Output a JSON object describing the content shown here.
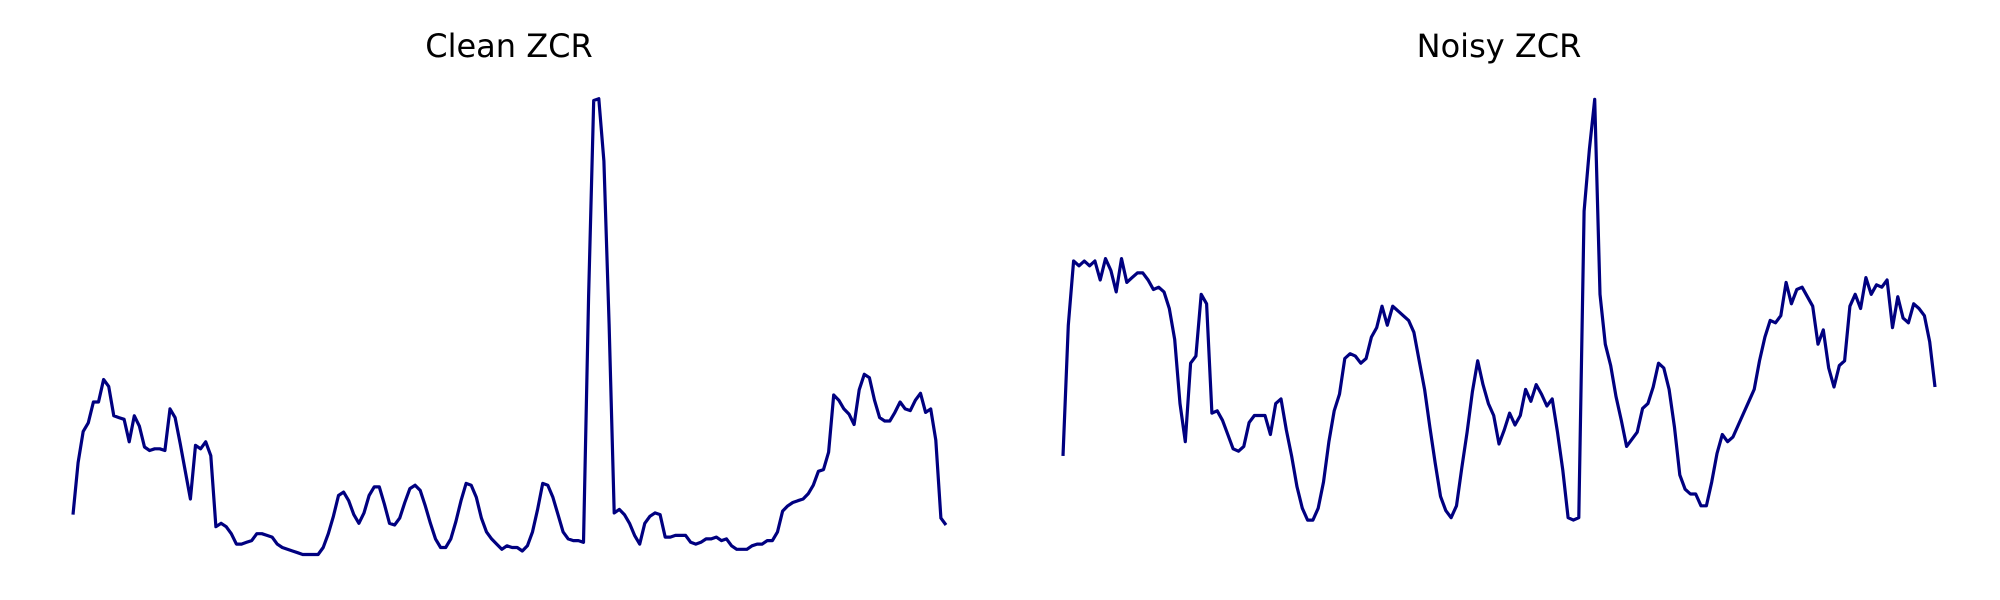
{
  "chart_data": [
    {
      "type": "line",
      "title": "Clean ZCR",
      "xlabel": "",
      "ylabel": "",
      "axis": "off",
      "grid": false,
      "ylim": [
        0.025,
        0.287
      ],
      "color": "#000080",
      "series": [
        {
          "values": [
            0.046,
            0.076,
            0.094,
            0.099,
            0.111,
            0.111,
            0.124,
            0.12,
            0.103,
            0.102,
            0.101,
            0.088,
            0.103,
            0.097,
            0.085,
            0.083,
            0.084,
            0.084,
            0.083,
            0.107,
            0.102,
            0.087,
            0.071,
            0.055,
            0.086,
            0.084,
            0.088,
            0.08,
            0.039,
            0.041,
            0.039,
            0.035,
            0.029,
            0.029,
            0.03,
            0.031,
            0.035,
            0.035,
            0.034,
            0.033,
            0.029,
            0.027,
            0.026,
            0.025,
            0.024,
            0.023,
            0.023,
            0.023,
            0.023,
            0.027,
            0.035,
            0.045,
            0.057,
            0.059,
            0.054,
            0.046,
            0.041,
            0.047,
            0.057,
            0.062,
            0.062,
            0.052,
            0.041,
            0.04,
            0.044,
            0.053,
            0.061,
            0.063,
            0.06,
            0.051,
            0.041,
            0.032,
            0.027,
            0.027,
            0.032,
            0.042,
            0.054,
            0.064,
            0.063,
            0.056,
            0.044,
            0.036,
            0.032,
            0.029,
            0.026,
            0.028,
            0.027,
            0.027,
            0.025,
            0.028,
            0.036,
            0.049,
            0.064,
            0.063,
            0.056,
            0.046,
            0.036,
            0.032,
            0.031,
            0.031,
            0.03,
            0.172,
            0.285,
            0.286,
            0.25,
            0.156,
            0.047,
            0.049,
            0.046,
            0.041,
            0.034,
            0.029,
            0.041,
            0.045,
            0.047,
            0.046,
            0.033,
            0.033,
            0.034,
            0.034,
            0.034,
            0.03,
            0.029,
            0.03,
            0.032,
            0.032,
            0.033,
            0.031,
            0.032,
            0.028,
            0.026,
            0.026,
            0.026,
            0.028,
            0.029,
            0.029,
            0.031,
            0.031,
            0.036,
            0.048,
            0.051,
            0.053,
            0.054,
            0.055,
            0.058,
            0.063,
            0.071,
            0.072,
            0.082,
            0.115,
            0.112,
            0.107,
            0.104,
            0.098,
            0.118,
            0.127,
            0.125,
            0.112,
            0.102,
            0.1,
            0.1,
            0.105,
            0.111,
            0.107,
            0.106,
            0.112,
            0.116,
            0.105,
            0.107,
            0.089,
            0.044,
            0.04
          ]
        }
      ]
    },
    {
      "type": "line",
      "title": "Noisy ZCR",
      "xlabel": "",
      "ylabel": "",
      "axis": "off",
      "grid": false,
      "ylim": [
        0.047,
        0.238
      ],
      "color": "#000080",
      "series": [
        {
          "values": [
            0.087,
            0.142,
            0.169,
            0.167,
            0.169,
            0.167,
            0.169,
            0.161,
            0.17,
            0.165,
            0.156,
            0.17,
            0.16,
            0.162,
            0.164,
            0.164,
            0.161,
            0.157,
            0.158,
            0.156,
            0.149,
            0.136,
            0.109,
            0.093,
            0.126,
            0.129,
            0.155,
            0.151,
            0.105,
            0.106,
            0.102,
            0.096,
            0.09,
            0.089,
            0.091,
            0.101,
            0.104,
            0.104,
            0.104,
            0.096,
            0.109,
            0.111,
            0.098,
            0.087,
            0.074,
            0.065,
            0.06,
            0.06,
            0.065,
            0.076,
            0.093,
            0.106,
            0.113,
            0.128,
            0.13,
            0.129,
            0.126,
            0.128,
            0.137,
            0.141,
            0.15,
            0.142,
            0.15,
            0.148,
            0.146,
            0.144,
            0.139,
            0.127,
            0.115,
            0.099,
            0.084,
            0.07,
            0.064,
            0.061,
            0.066,
            0.082,
            0.097,
            0.114,
            0.127,
            0.117,
            0.109,
            0.104,
            0.092,
            0.098,
            0.105,
            0.1,
            0.104,
            0.115,
            0.11,
            0.117,
            0.113,
            0.108,
            0.111,
            0.097,
            0.081,
            0.061,
            0.06,
            0.061,
            0.19,
            0.216,
            0.237,
            0.155,
            0.134,
            0.125,
            0.112,
            0.102,
            0.091,
            0.094,
            0.097,
            0.107,
            0.109,
            0.116,
            0.126,
            0.124,
            0.115,
            0.099,
            0.079,
            0.073,
            0.071,
            0.071,
            0.066,
            0.066,
            0.076,
            0.088,
            0.096,
            0.093,
            0.095,
            0.1,
            0.105,
            0.11,
            0.115,
            0.127,
            0.137,
            0.144,
            0.143,
            0.146,
            0.16,
            0.151,
            0.157,
            0.158,
            0.154,
            0.15,
            0.134,
            0.14,
            0.124,
            0.116,
            0.125,
            0.127,
            0.15,
            0.155,
            0.149,
            0.162,
            0.155,
            0.159,
            0.158,
            0.161,
            0.141,
            0.154,
            0.145,
            0.143,
            0.151,
            0.149,
            0.146,
            0.135,
            0.116
          ]
        }
      ]
    }
  ]
}
